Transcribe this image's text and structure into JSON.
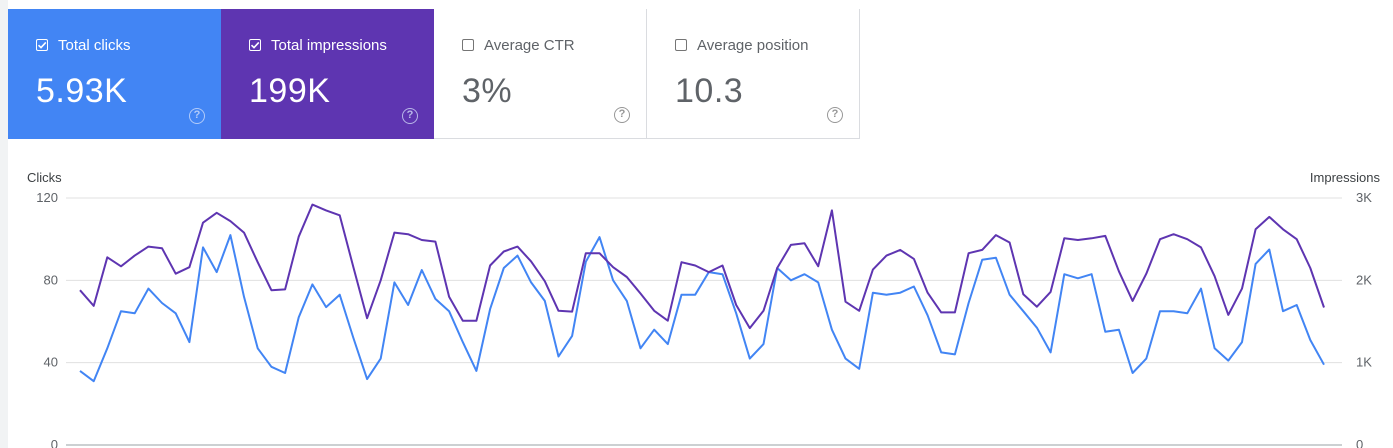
{
  "cards": [
    {
      "label": "Total clicks",
      "value": "5.93K",
      "checked": true,
      "color": "#4285f4"
    },
    {
      "label": "Total impressions",
      "value": "199K",
      "checked": true,
      "color": "#5e35b1"
    },
    {
      "label": "Average CTR",
      "value": "3%",
      "checked": false,
      "color": "#ffffff"
    },
    {
      "label": "Average position",
      "value": "10.3",
      "checked": false,
      "color": "#ffffff"
    }
  ],
  "help_glyph": "?",
  "chart_data": {
    "type": "line",
    "ylabel_left": "Clicks",
    "ylabel_right": "Impressions",
    "left_ticks": [
      "120",
      "80",
      "40",
      "0"
    ],
    "right_ticks": [
      "3K",
      "2K",
      "1K",
      "0"
    ],
    "ylim_left": [
      0,
      120
    ],
    "ylim_right": [
      0,
      3000
    ],
    "grid": true,
    "series": [
      {
        "name": "Clicks",
        "axis": "left",
        "color": "#4285f4",
        "values": [
          36,
          31,
          47,
          65,
          64,
          76,
          69,
          64,
          50,
          96,
          84,
          102,
          72,
          47,
          38,
          35,
          62,
          78,
          67,
          73,
          52,
          32,
          42,
          79,
          68,
          85,
          71,
          65,
          50,
          36,
          66,
          86,
          92,
          79,
          70,
          43,
          53,
          89,
          101,
          80,
          70,
          47,
          56,
          49,
          73,
          73,
          84,
          83,
          64,
          42,
          49,
          86,
          80,
          83,
          79,
          56,
          42,
          37,
          74,
          73,
          74,
          77,
          63,
          45,
          44,
          69,
          90,
          91,
          73,
          65,
          57,
          45,
          83,
          81,
          83,
          55,
          56,
          35,
          42,
          65,
          65,
          64,
          76,
          47,
          41,
          50,
          88,
          95,
          65,
          68,
          51,
          39
        ]
      },
      {
        "name": "Impressions",
        "axis": "right",
        "color": "#5e35b1",
        "values": [
          1880,
          1690,
          2280,
          2170,
          2300,
          2410,
          2390,
          2080,
          2160,
          2700,
          2820,
          2720,
          2580,
          2220,
          1880,
          1890,
          2530,
          2920,
          2850,
          2790,
          2160,
          1540,
          2000,
          2580,
          2560,
          2490,
          2470,
          1800,
          1510,
          1510,
          2180,
          2350,
          2410,
          2230,
          1990,
          1630,
          1620,
          2330,
          2330,
          2160,
          2040,
          1840,
          1630,
          1510,
          2220,
          2180,
          2100,
          2180,
          1700,
          1420,
          1630,
          2150,
          2430,
          2450,
          2170,
          2850,
          1740,
          1630,
          2130,
          2300,
          2370,
          2260,
          1850,
          1610,
          1610,
          2330,
          2370,
          2550,
          2460,
          1830,
          1680,
          1860,
          2510,
          2490,
          2510,
          2540,
          2110,
          1750,
          2080,
          2500,
          2560,
          2500,
          2400,
          2050,
          1580,
          1900,
          2620,
          2770,
          2620,
          2500,
          2150,
          1670
        ]
      }
    ]
  }
}
